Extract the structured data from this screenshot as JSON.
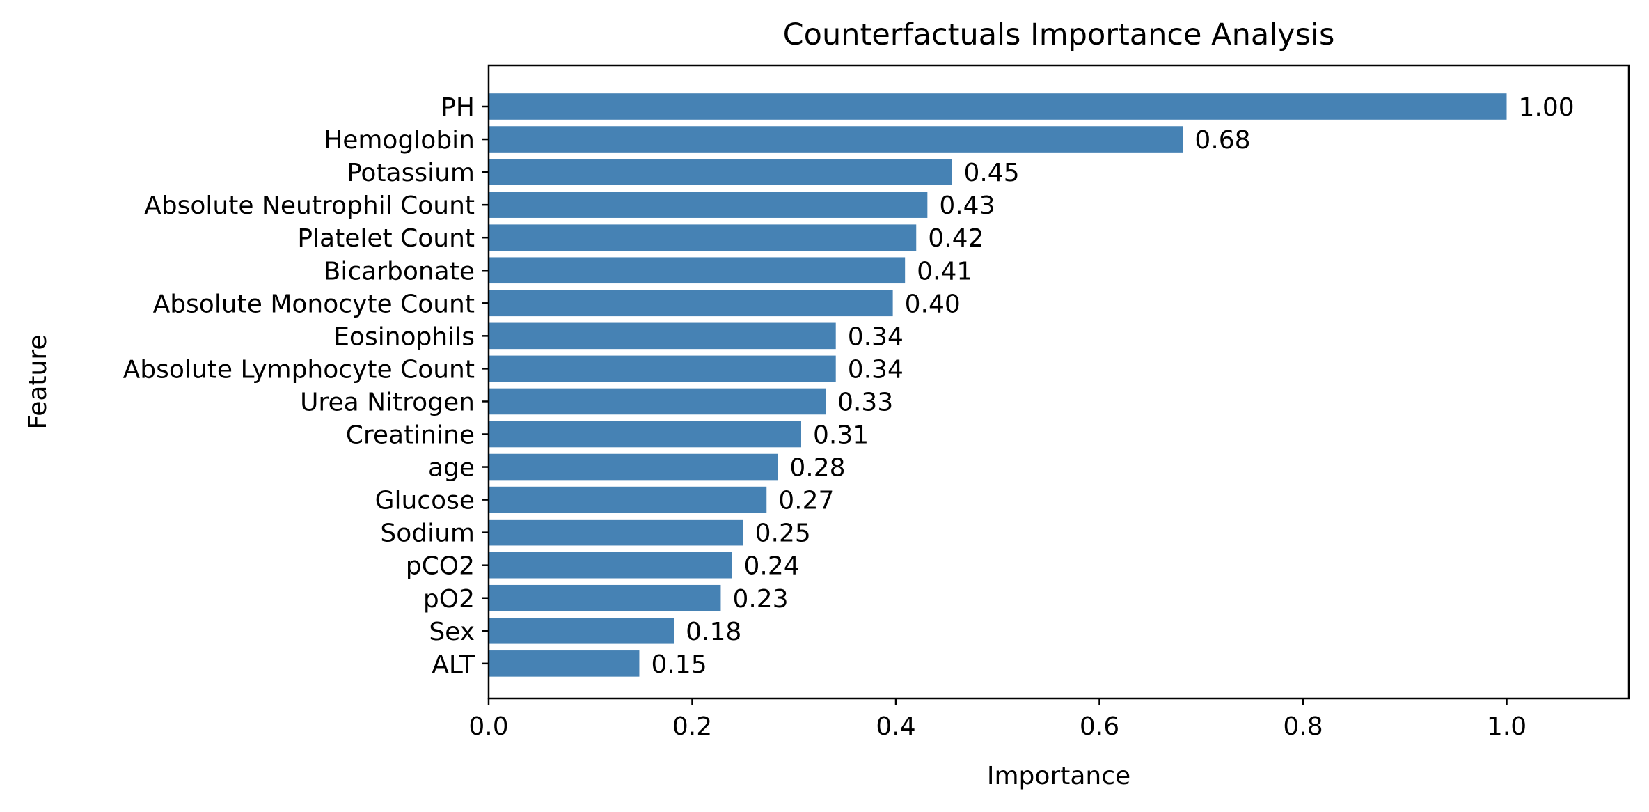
{
  "chart_data": {
    "type": "bar",
    "orientation": "horizontal",
    "title": "Counterfactuals Importance Analysis",
    "xlabel": "Importance",
    "ylabel": "Feature",
    "xlim": [
      0,
      1.12
    ],
    "xticks": [
      0.0,
      0.2,
      0.4,
      0.6,
      0.8,
      1.0
    ],
    "xtick_labels": [
      "0.0",
      "0.2",
      "0.4",
      "0.6",
      "0.8",
      "1.0"
    ],
    "grid": false,
    "bar_color": "#4682b4",
    "categories": [
      "PH",
      "Hemoglobin",
      "Potassium",
      "Absolute Neutrophil Count",
      "Platelet Count",
      "Bicarbonate",
      "Absolute Monocyte Count",
      "Eosinophils",
      "Absolute Lymphocyte Count",
      "Urea Nitrogen",
      "Creatinine",
      "age",
      "Glucose",
      "Sodium",
      "pCO2",
      "pO2",
      "Sex",
      "ALT"
    ],
    "values": [
      1.0,
      0.682,
      0.455,
      0.431,
      0.42,
      0.409,
      0.397,
      0.341,
      0.341,
      0.331,
      0.307,
      0.284,
      0.273,
      0.25,
      0.239,
      0.228,
      0.182,
      0.148
    ],
    "value_labels": [
      "1.00",
      "0.68",
      "0.45",
      "0.43",
      "0.42",
      "0.41",
      "0.40",
      "0.34",
      "0.34",
      "0.33",
      "0.31",
      "0.28",
      "0.27",
      "0.25",
      "0.24",
      "0.23",
      "0.18",
      "0.15"
    ]
  }
}
